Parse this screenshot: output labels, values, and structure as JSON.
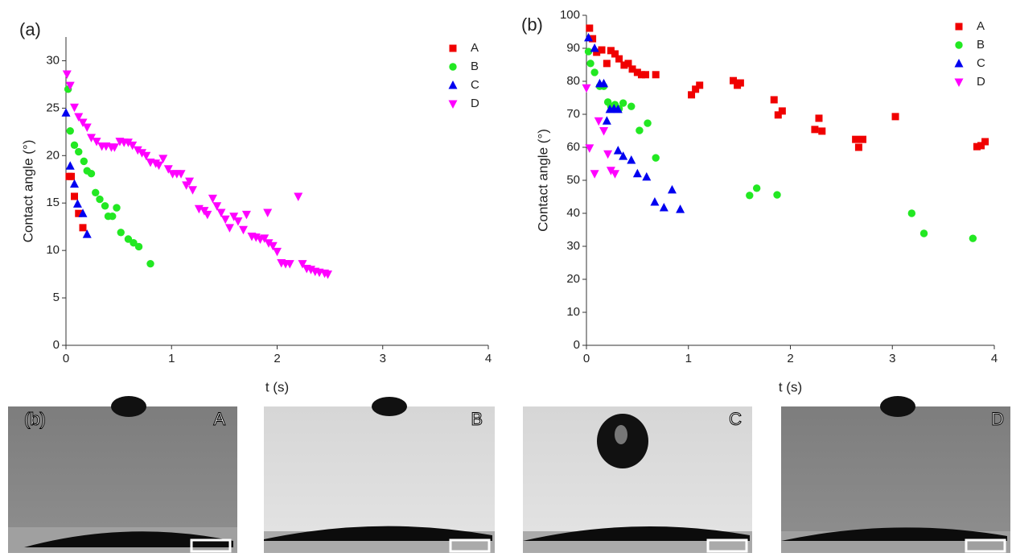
{
  "chart_data": [
    {
      "type": "scatter",
      "title": "(a)",
      "xlabel": "t (s)",
      "ylabel": "Contact angle (°)",
      "xlim": [
        0,
        4
      ],
      "xticks": [
        0,
        1,
        2,
        3,
        4
      ],
      "ylim": [
        0,
        32.5
      ],
      "yticks": [
        0,
        5,
        10,
        15,
        20,
        25,
        30
      ],
      "legend": "upper right",
      "series": [
        {
          "name": "A",
          "color": "#f00000",
          "marker": "square",
          "x": [
            0.03,
            0.05,
            0.08,
            0.12,
            0.16
          ],
          "values": [
            17.8,
            17.8,
            15.7,
            13.9,
            12.4
          ]
        },
        {
          "name": "B",
          "color": "#22e822",
          "marker": "circle",
          "x": [
            0.02,
            0.04,
            0.08,
            0.12,
            0.17,
            0.2,
            0.24,
            0.28,
            0.32,
            0.37,
            0.4,
            0.44,
            0.48,
            0.52,
            0.59,
            0.64,
            0.69,
            0.8
          ],
          "values": [
            27,
            22.6,
            21.1,
            20.4,
            19.4,
            18.4,
            18.1,
            16.1,
            15.4,
            14.7,
            13.6,
            13.6,
            14.5,
            11.9,
            11.2,
            10.8,
            10.4,
            8.6
          ]
        },
        {
          "name": "C",
          "color": "#0000f0",
          "marker": "triangle-up",
          "x": [
            0,
            0.04,
            0.08,
            0.11,
            0.16,
            0.2
          ],
          "values": [
            24.5,
            18.9,
            17.0,
            14.9,
            13.9,
            11.7
          ]
        },
        {
          "name": "D",
          "color": "#ff00ff",
          "marker": "triangle-down",
          "x": [
            0.01,
            0.04,
            0.08,
            0.12,
            0.16,
            0.2,
            0.24,
            0.29,
            0.34,
            0.38,
            0.43,
            0.46,
            0.51,
            0.55,
            0.59,
            0.63,
            0.68,
            0.72,
            0.76,
            0.8,
            0.85,
            0.88,
            0.92,
            0.97,
            1.01,
            1.05,
            1.09,
            1.14,
            1.17,
            1.2,
            1.26,
            1.31,
            1.34,
            1.39,
            1.43,
            1.47,
            1.51,
            1.55,
            1.59,
            1.63,
            1.68,
            1.71,
            1.76,
            1.8,
            1.84,
            1.88,
            1.91,
            1.92,
            1.96,
            2.0,
            2.04,
            2.08,
            2.12,
            2.2,
            2.24,
            2.28,
            2.32,
            2.36,
            2.4,
            2.45,
            2.48
          ],
          "values": [
            28.6,
            27.4,
            25.1,
            24.1,
            23.5,
            23.0,
            21.9,
            21.5,
            21.0,
            21.0,
            20.9,
            20.9,
            21.5,
            21.4,
            21.4,
            21.1,
            20.6,
            20.3,
            20.0,
            19.3,
            19.2,
            19.0,
            19.7,
            18.6,
            18.1,
            18.1,
            18.1,
            16.9,
            17.3,
            16.4,
            14.4,
            14.2,
            13.8,
            15.5,
            14.7,
            14.0,
            13.3,
            12.4,
            13.6,
            13.1,
            12.2,
            13.8,
            11.5,
            11.4,
            11.2,
            11.3,
            14.0,
            10.8,
            10.5,
            9.9,
            8.7,
            8.6,
            8.6,
            15.7,
            8.6,
            8.1,
            8.0,
            7.8,
            7.7,
            7.6,
            7.5
          ]
        }
      ]
    },
    {
      "type": "scatter",
      "title": "(b)",
      "xlabel": "t (s)",
      "ylabel": "Contact angle (°)",
      "xlim": [
        0,
        4
      ],
      "xticks": [
        0,
        1,
        2,
        3,
        4
      ],
      "ylim": [
        0,
        100
      ],
      "yticks": [
        0,
        10,
        20,
        30,
        40,
        50,
        60,
        70,
        80,
        90,
        100
      ],
      "legend": "upper right",
      "series": [
        {
          "name": "A",
          "color": "#f00000",
          "marker": "square",
          "x": [
            0.03,
            0.06,
            0.1,
            0.15,
            0.2,
            0.24,
            0.28,
            0.32,
            0.37,
            0.41,
            0.45,
            0.5,
            0.54,
            0.58,
            0.68,
            1.03,
            1.07,
            1.11,
            1.44,
            1.48,
            1.51,
            1.84,
            1.88,
            1.92,
            2.24,
            2.28,
            2.31,
            2.64,
            2.67,
            2.71,
            3.03,
            3.83,
            3.87,
            3.91
          ],
          "values": [
            96.1,
            92.9,
            88.8,
            89.5,
            85.4,
            89.3,
            88.3,
            86.8,
            84.9,
            85.4,
            83.7,
            82.7,
            82.0,
            82.0,
            82.0,
            75.9,
            77.6,
            78.8,
            80.2,
            78.8,
            79.5,
            74.4,
            69.8,
            71.0,
            65.4,
            68.8,
            64.9,
            62.4,
            60.0,
            62.4,
            69.3,
            60.2,
            60.5,
            61.7
          ]
        },
        {
          "name": "B",
          "color": "#22e822",
          "marker": "circle",
          "x": [
            0.02,
            0.04,
            0.08,
            0.13,
            0.17,
            0.21,
            0.24,
            0.28,
            0.32,
            0.36,
            0.44,
            0.52,
            0.6,
            0.68,
            1.6,
            1.67,
            1.87,
            3.19,
            3.31,
            3.79
          ],
          "values": [
            89.0,
            85.4,
            82.7,
            78.5,
            78.5,
            73.7,
            72.4,
            72.9,
            71.7,
            73.4,
            72.4,
            65.1,
            67.3,
            56.8,
            45.4,
            47.6,
            45.6,
            40.0,
            33.9,
            32.4
          ]
        },
        {
          "name": "C",
          "color": "#0000f0",
          "marker": "triangle-up",
          "x": [
            0.02,
            0.08,
            0.13,
            0.17,
            0.2,
            0.23,
            0.27,
            0.31,
            0.31,
            0.36,
            0.44,
            0.5,
            0.59,
            0.67,
            0.76,
            0.84,
            0.92
          ],
          "values": [
            93.2,
            90.0,
            79.3,
            79.3,
            68.0,
            71.5,
            71.7,
            71.5,
            59.0,
            57.3,
            56.1,
            52.0,
            51.0,
            43.4,
            41.7,
            47.1,
            41.2
          ]
        },
        {
          "name": "D",
          "color": "#ff00ff",
          "marker": "triangle-down",
          "x": [
            0.0,
            0.03,
            0.08,
            0.12,
            0.17,
            0.21,
            0.24,
            0.28
          ],
          "values": [
            78,
            59.8,
            52,
            68,
            65,
            58,
            53,
            52
          ]
        }
      ]
    }
  ],
  "photos": {
    "tag": "(b)",
    "labels": [
      "A",
      "B",
      "C",
      "D"
    ]
  }
}
